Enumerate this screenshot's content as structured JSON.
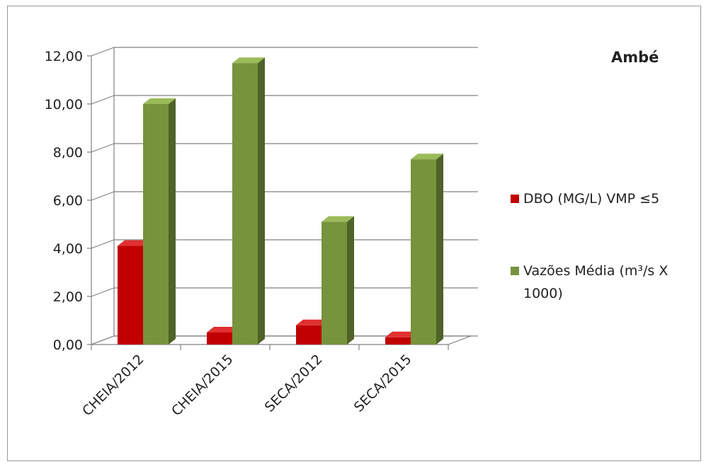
{
  "chart_data": {
    "type": "bar",
    "title": "Ambé",
    "categories": [
      "CHEIA/2012",
      "CHEIA/2015",
      "SECA/2012",
      "SECA/2015"
    ],
    "series": [
      {
        "name": "DBO (MG/L) VMP ≤5",
        "values": [
          4.1,
          0.5,
          0.8,
          0.3
        ],
        "color": "#c00000"
      },
      {
        "name": "Vazões Média (m³/s X 1000)",
        "values": [
          10.0,
          11.7,
          5.1,
          7.7
        ],
        "color": "#77933c"
      }
    ],
    "legend_name_lines": [
      [
        "DBO (MG/L) VMP ≤5"
      ],
      [
        "Vazões Média (m³/s X",
        "1000)"
      ]
    ],
    "yticks": [
      "0,00",
      "2,00",
      "4,00",
      "6,00",
      "8,00",
      "10,00",
      "12,00"
    ],
    "ylim": [
      0,
      12
    ],
    "grid": true,
    "legend_position": "right",
    "style": "3d-column",
    "colors": {
      "grid": "#808080",
      "dbo_side": "#7a0000",
      "dbo_top": "#e03030",
      "vazao_side": "#4f6228",
      "vazao_top": "#9bbb59"
    }
  }
}
